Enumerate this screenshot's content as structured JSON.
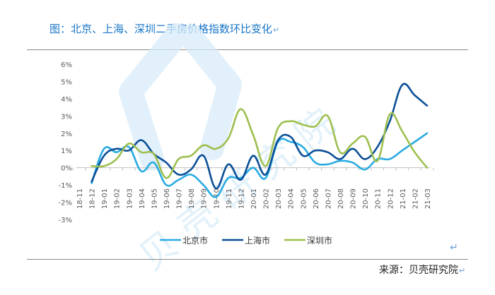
{
  "header": {
    "title": "图：北京、上海、深圳二手房价格指数环比变化",
    "return_mark": "↵"
  },
  "footer": {
    "source": "来源：贝壳研究院",
    "return_mark": "↵",
    "para_mark": "↵"
  },
  "watermark": {
    "text": "贝壳研究院"
  },
  "colors": {
    "title": "#1976c8",
    "beijing": "#29abe2",
    "shanghai": "#0b4f97",
    "shenzhen": "#9dbf4f",
    "axis": "#bfbfbf",
    "tick_text": "#595959",
    "watermark": "#d7ecf9"
  },
  "chart_data": {
    "type": "line",
    "x": [
      "18-11",
      "18-12",
      "19-01",
      "19-02",
      "19-03",
      "19-04",
      "19-05",
      "19-06",
      "19-07",
      "19-08",
      "19-09",
      "19-10",
      "19-11",
      "19-12",
      "20-01",
      "20-02",
      "20-03",
      "20-04",
      "20-05",
      "20-06",
      "20-07",
      "20-08",
      "20-09",
      "20-10",
      "20-11",
      "20-12",
      "21-01",
      "21-02",
      "21-03"
    ],
    "ylim": [
      -3,
      6
    ],
    "yticks": [
      -3,
      -2,
      -1,
      0,
      1,
      2,
      3,
      4,
      5,
      6
    ],
    "ytick_labels": [
      "-3%",
      "-2%",
      "-1%",
      "0%",
      "1%",
      "2%",
      "3%",
      "4%",
      "5%",
      "6%"
    ],
    "grid": false,
    "legend_position": "bottom",
    "series": [
      {
        "name": "北京市",
        "values": [
          null,
          -0.9,
          1.1,
          0.9,
          1.2,
          -0.2,
          0.3,
          -1.0,
          -0.7,
          -0.4,
          -1.0,
          -1.7,
          -0.6,
          -0.6,
          0.0,
          -0.6,
          1.5,
          1.5,
          1.2,
          0.3,
          0.2,
          0.4,
          0.3,
          -0.1,
          0.5,
          0.5,
          1.0,
          1.5,
          2.0
        ]
      },
      {
        "name": "上海市",
        "values": [
          null,
          -0.8,
          0.7,
          1.1,
          1.0,
          1.6,
          0.8,
          0.3,
          -0.4,
          -0.1,
          0.7,
          -1.2,
          0.2,
          -0.7,
          0.7,
          -0.4,
          1.6,
          1.8,
          0.7,
          1.0,
          0.9,
          0.5,
          1.1,
          0.5,
          1.2,
          2.7,
          4.8,
          4.2,
          3.6
        ]
      },
      {
        "name": "深圳市",
        "values": [
          null,
          0.1,
          0.1,
          0.5,
          1.4,
          0.9,
          0.8,
          -0.6,
          0.5,
          0.7,
          1.3,
          1.1,
          1.7,
          3.4,
          1.9,
          0.1,
          2.3,
          2.7,
          2.5,
          2.4,
          3.0,
          0.9,
          1.4,
          1.8,
          0.4,
          3.1,
          2.1,
          0.9,
          0.0
        ]
      }
    ]
  }
}
